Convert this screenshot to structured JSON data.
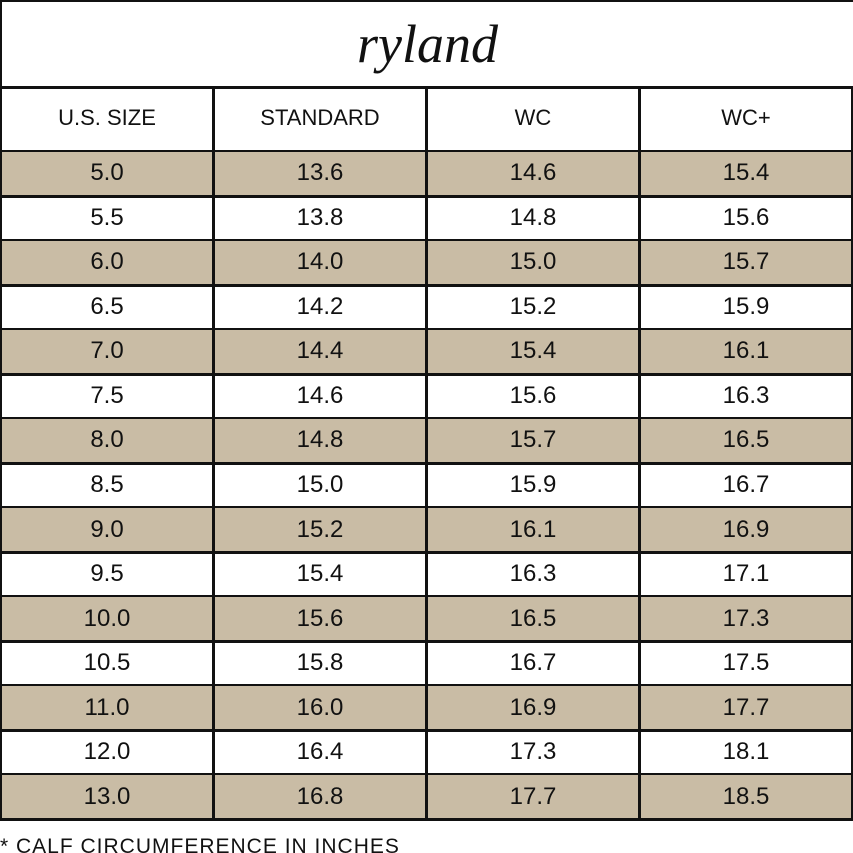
{
  "title": "ryland",
  "table": {
    "header": [
      "U.S. SIZE",
      "STANDARD",
      "WC",
      "WC+"
    ],
    "rows": [
      [
        "5.0",
        "13.6",
        "14.6",
        "15.4"
      ],
      [
        "5.5",
        "13.8",
        "14.8",
        "15.6"
      ],
      [
        "6.0",
        "14.0",
        "15.0",
        "15.7"
      ],
      [
        "6.5",
        "14.2",
        "15.2",
        "15.9"
      ],
      [
        "7.0",
        "14.4",
        "15.4",
        "16.1"
      ],
      [
        "7.5",
        "14.6",
        "15.6",
        "16.3"
      ],
      [
        "8.0",
        "14.8",
        "15.7",
        "16.5"
      ],
      [
        "8.5",
        "15.0",
        "15.9",
        "16.7"
      ],
      [
        "9.0",
        "15.2",
        "16.1",
        "16.9"
      ],
      [
        "9.5",
        "15.4",
        "16.3",
        "17.1"
      ],
      [
        "10.0",
        "15.6",
        "16.5",
        "17.3"
      ],
      [
        "10.5",
        "15.8",
        "16.7",
        "17.5"
      ],
      [
        "11.0",
        "16.0",
        "16.9",
        "17.7"
      ],
      [
        "12.0",
        "16.4",
        "17.3",
        "18.1"
      ],
      [
        "13.0",
        "16.8",
        "17.7",
        "18.5"
      ]
    ]
  },
  "footnote": "* CALF CIRCUMFERENCE IN INCHES"
}
